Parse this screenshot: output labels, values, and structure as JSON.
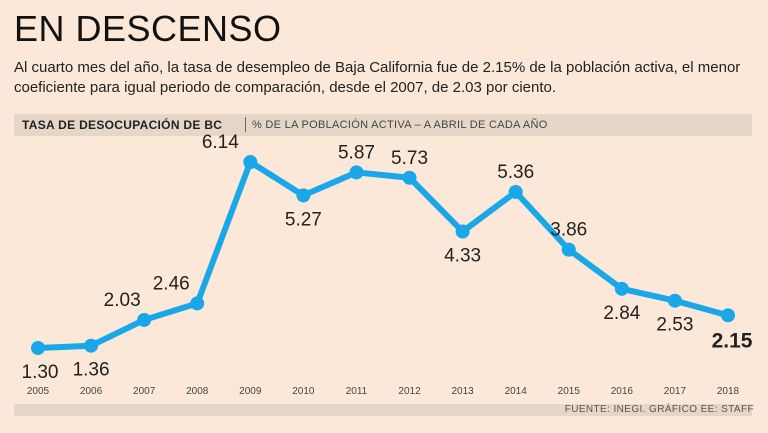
{
  "header": {
    "title": "EN DESCENSO",
    "subtitle": "Al cuarto mes del año, la tasa de desempleo de Baja California fue de 2.15% de la población activa, el menor coeficiente para igual periodo de comparación, desde el 2007, de 2.03 por ciento."
  },
  "band": {
    "bold": "TASA DE DESOCUPACIÓN DE BC",
    "light": "% DE LA POBLACIÓN ACTIVA – A ABRIL DE CADA AÑO"
  },
  "footer": {
    "source": "FUENTE: INEGI. GRÁFICO EE: STAFF"
  },
  "colors": {
    "line": "#1aa7e8",
    "background": "#fbe8d9",
    "band": "#e6d6c8"
  },
  "chart_data": {
    "type": "line",
    "title": "TASA DE DESOCUPACIÓN DE BC",
    "ylabel": "% DE LA POBLACIÓN ACTIVA – A ABRIL DE CADA AÑO",
    "xlabel": "",
    "categories": [
      "2005",
      "2006",
      "2007",
      "2008",
      "2009",
      "2010",
      "2011",
      "2012",
      "2013",
      "2014",
      "2015",
      "2016",
      "2017",
      "2018"
    ],
    "values": [
      1.3,
      1.36,
      2.03,
      2.46,
      6.14,
      5.27,
      5.87,
      5.73,
      4.33,
      5.36,
      3.86,
      2.84,
      2.53,
      2.15
    ],
    "labels": [
      "1.30",
      "1.36",
      "2.03",
      "2.46",
      "6.14",
      "5.27",
      "5.87",
      "5.73",
      "4.33",
      "5.36",
      "3.86",
      "2.84",
      "2.53",
      "2.15"
    ],
    "ylim": [
      0,
      7
    ],
    "grid": false
  }
}
